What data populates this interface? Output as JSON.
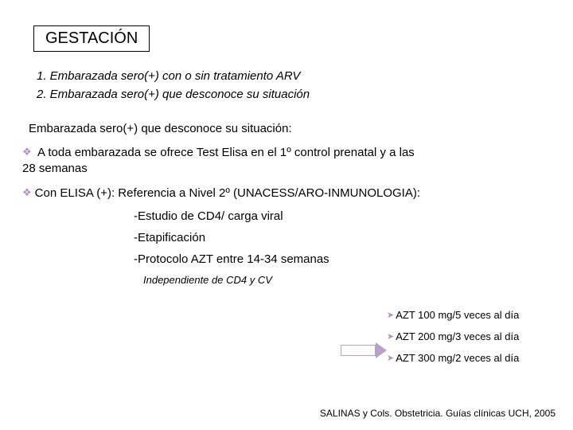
{
  "title": "GESTACIÓN",
  "scenarios": {
    "s1": "1.  Embarazada sero(+) con o sin tratamiento ARV",
    "s2": "2. Embarazada sero(+) que desconoce su situación"
  },
  "subheading": "Embarazada sero(+) que desconoce su situación:",
  "bullets": {
    "b1_prefix": " A toda embarazada se ofrece Test Elisa en el 1º control prenatal y a las",
    "b1_line2": "28 semanas",
    "b2": "Con ELISA (+): Referencia a Nivel 2º (UNACESS/ARO-INMUNOLOGIA):"
  },
  "sublist": {
    "i1": "-Estudio de CD4/ carga viral",
    "i2": "-Etapificación",
    "i3": "-Protocolo AZT entre 14-34 semanas",
    "indep": "Independiente de CD4 y CV"
  },
  "azt": {
    "a1": "AZT 100 mg/5 veces al día",
    "a2": "AZT 200 mg/3 veces al día",
    "a3": "AZT 300 mg/2 veces al día"
  },
  "citation": "SALINAS y Cols. Obstetricia. Guías clínicas UCH, 2005",
  "glyphs": {
    "diamond": "❖",
    "triangle": "➤"
  },
  "colors": {
    "accent": "#b08fc2",
    "text": "#000000",
    "bg": "#ffffff"
  },
  "fontsizes": {
    "title": 20,
    "body": 15,
    "small": 13,
    "tiny": 12
  }
}
